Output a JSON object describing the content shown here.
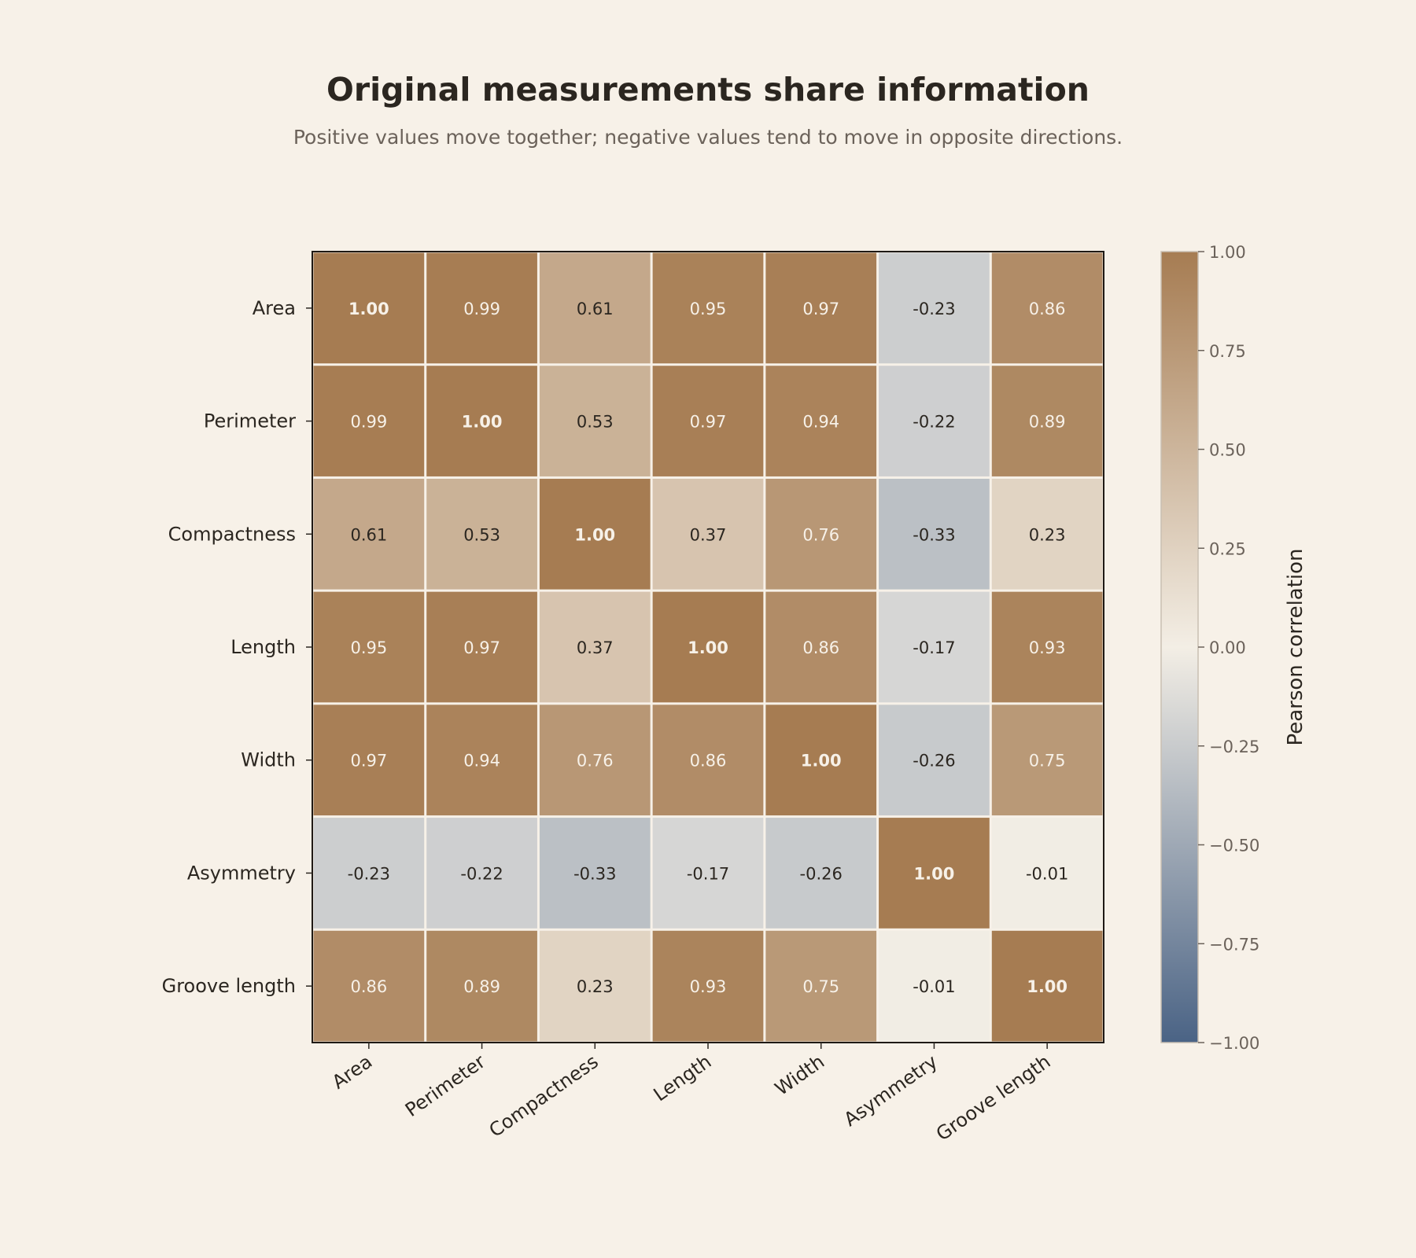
{
  "chart_data": {
    "type": "heatmap",
    "title": "Original measurements share information",
    "subtitle": "Positive values move together; negative values tend to move in opposite directions.",
    "row_labels": [
      "Area",
      "Perimeter",
      "Compactness",
      "Length",
      "Width",
      "Asymmetry",
      "Groove length"
    ],
    "col_labels": [
      "Area",
      "Perimeter",
      "Compactness",
      "Length",
      "Width",
      "Asymmetry",
      "Groove length"
    ],
    "values": [
      [
        1.0,
        0.99,
        0.61,
        0.95,
        0.97,
        -0.23,
        0.86
      ],
      [
        0.99,
        1.0,
        0.53,
        0.97,
        0.94,
        -0.22,
        0.89
      ],
      [
        0.61,
        0.53,
        1.0,
        0.37,
        0.76,
        -0.33,
        0.23
      ],
      [
        0.95,
        0.97,
        0.37,
        1.0,
        0.86,
        -0.17,
        0.93
      ],
      [
        0.97,
        0.94,
        0.76,
        0.86,
        1.0,
        -0.26,
        0.75
      ],
      [
        -0.23,
        -0.22,
        -0.33,
        -0.17,
        -0.26,
        1.0,
        -0.01
      ],
      [
        0.86,
        0.89,
        0.23,
        0.93,
        0.75,
        -0.01,
        1.0
      ]
    ],
    "value_format": "2 decimals",
    "colorbar": {
      "label": "Pearson correlation",
      "range": [
        -1.0,
        1.0
      ],
      "ticks": [
        "1.00",
        "0.75",
        "0.50",
        "0.25",
        "0.00",
        "−0.25",
        "−0.50",
        "−0.75",
        "−1.00"
      ],
      "tick_values": [
        1.0,
        0.75,
        0.5,
        0.25,
        0.0,
        -0.25,
        -0.5,
        -0.75,
        -1.0
      ],
      "colors": {
        "negative": "#4a6385",
        "neutral": "#f3eee5",
        "positive": "#a67c52"
      }
    },
    "colors": {
      "background": "#f7f1e8",
      "text_dark": "#2b2620",
      "text_light": "#f7f1e8",
      "subtitle": "#6b625a",
      "cell_gap": "#f7f1e8"
    }
  }
}
